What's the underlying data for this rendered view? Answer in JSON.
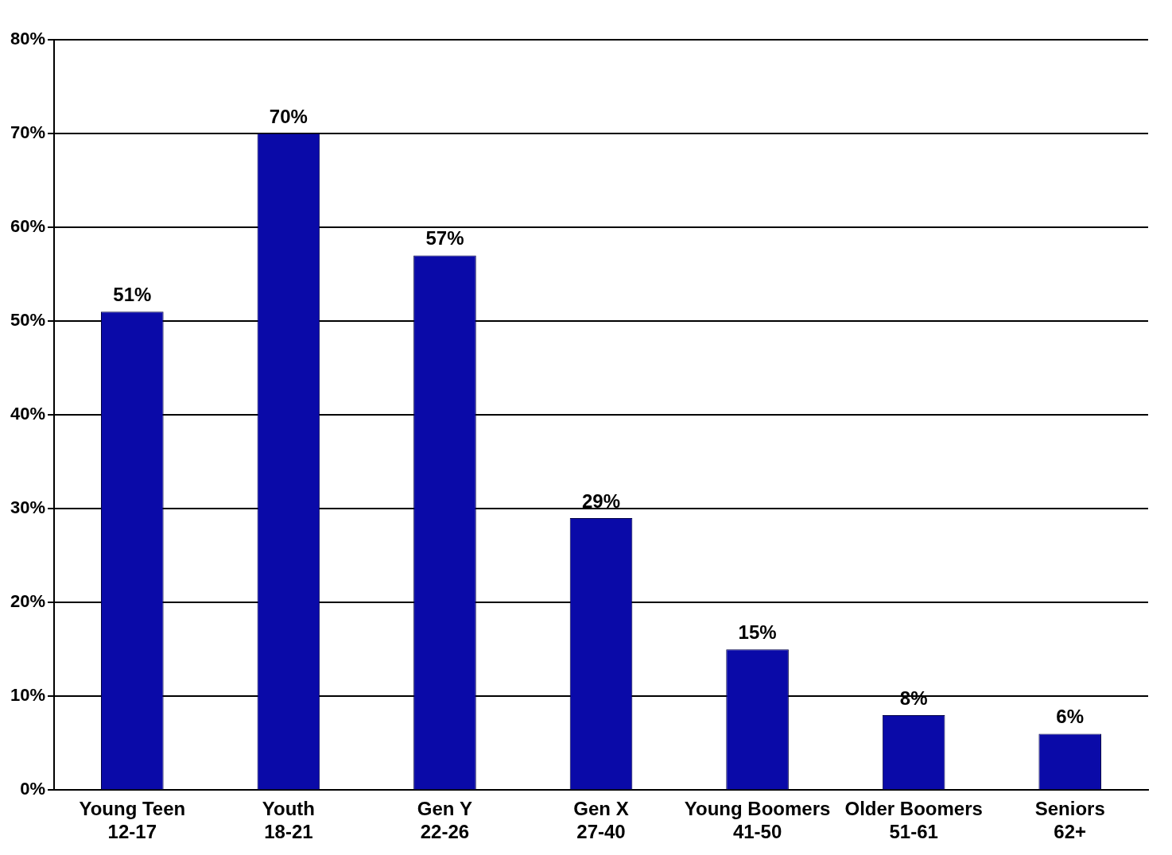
{
  "chart_data": {
    "type": "bar",
    "categories": [
      "Young Teen 12-17",
      "Youth 18-21",
      "Gen Y 22-26",
      "Gen X 27-40",
      "Young Boomers 41-50",
      "Older Boomers 51-61",
      "Seniors 62+"
    ],
    "values": [
      51,
      70,
      57,
      29,
      15,
      8,
      6
    ],
    "value_labels": [
      "51%",
      "70%",
      "57%",
      "29%",
      "15%",
      "8%",
      "6%"
    ],
    "data_labels": true,
    "color": "#0a0aa8",
    "ylim": [
      0,
      80
    ],
    "yticks": [
      {
        "value": 0,
        "label": "0%"
      },
      {
        "value": 10,
        "label": "10%"
      },
      {
        "value": 20,
        "label": "20%"
      },
      {
        "value": 30,
        "label": "30%"
      },
      {
        "value": 40,
        "label": "40%"
      },
      {
        "value": 50,
        "label": "50%"
      },
      {
        "value": 60,
        "label": "60%"
      },
      {
        "value": 70,
        "label": "70%"
      },
      {
        "value": 80,
        "label": "80%"
      }
    ],
    "grid": true
  }
}
